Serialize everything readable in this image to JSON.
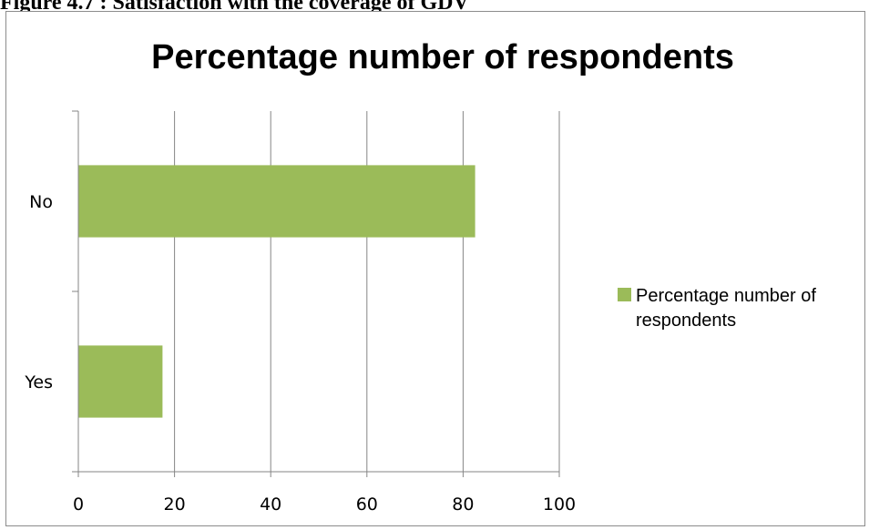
{
  "caption": "Figure 4.7 : Satisfaction with the coverage of GDV",
  "chart_data": {
    "type": "bar",
    "orientation": "horizontal",
    "title": "Percentage number of respondents",
    "categories": [
      "No",
      "Yes"
    ],
    "series": [
      {
        "name": "Percentage number of respondents",
        "values": [
          82.5,
          17.5
        ],
        "color": "#9bbb59"
      }
    ],
    "xlim": [
      0,
      100
    ],
    "xticks": [
      0,
      20,
      40,
      60,
      80,
      100
    ],
    "grid": true,
    "legend_position": "right"
  }
}
